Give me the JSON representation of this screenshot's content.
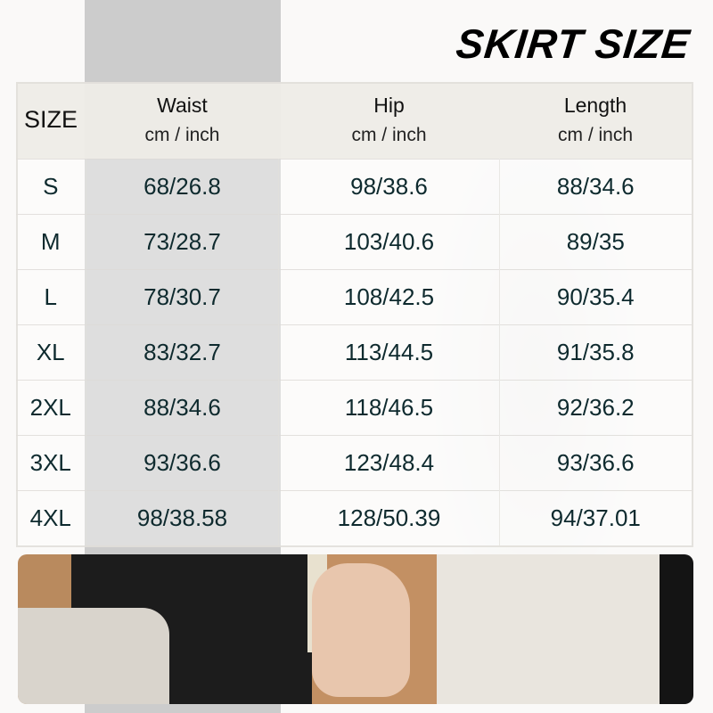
{
  "title": "SKIRT SIZE",
  "table": {
    "headers": [
      {
        "label": "SIZE",
        "unit": ""
      },
      {
        "label": "Waist",
        "unit": "cm / inch"
      },
      {
        "label": "Hip",
        "unit": "cm / inch"
      },
      {
        "label": "Length",
        "unit": "cm / inch"
      }
    ],
    "rows": [
      [
        "S",
        "68/26.8",
        "98/38.6",
        "88/34.6"
      ],
      [
        "M",
        "73/28.7",
        "103/40.6",
        "89/35"
      ],
      [
        "L",
        "78/30.7",
        "108/42.5",
        "90/35.4"
      ],
      [
        "XL",
        "83/32.7",
        "113/44.5",
        "91/35.8"
      ],
      [
        "2XL",
        "88/34.6",
        "118/46.5",
        "92/36.2"
      ],
      [
        "3XL",
        "93/36.6",
        "123/48.4",
        "93/36.6"
      ],
      [
        "4XL",
        "98/38.58",
        "128/50.39",
        "94/37.01"
      ]
    ]
  },
  "colors": {
    "text": "#0e2a2e",
    "header_bg": "#eeece7"
  }
}
